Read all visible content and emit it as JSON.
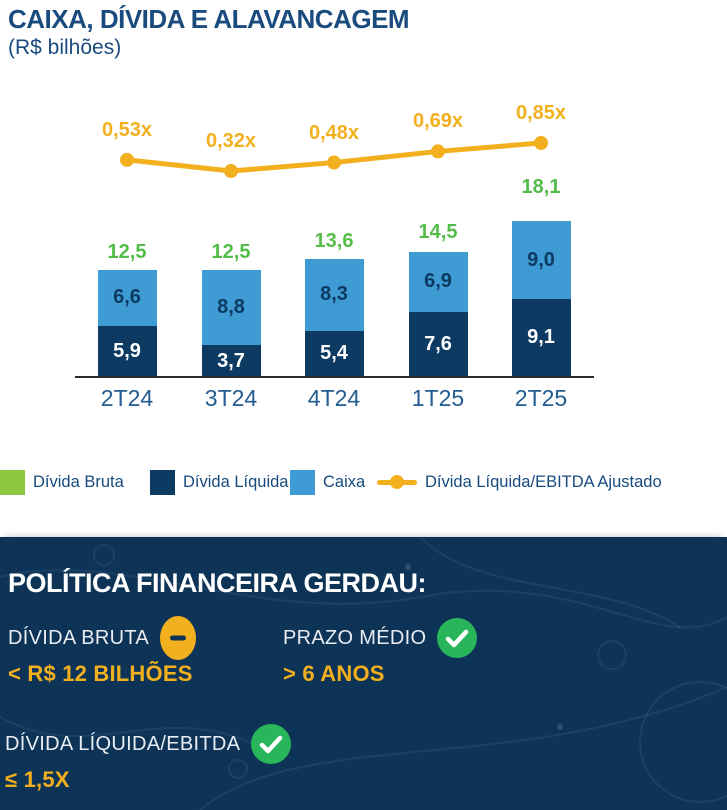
{
  "header": {
    "title": "CAIXA, DÍVIDA E ALAVANCAGEM",
    "subtitle": "(R$ bilhões)"
  },
  "chart_data": {
    "type": "bar",
    "stacked": true,
    "title": "CAIXA, DÍVIDA E ALAVANCAGEM",
    "unit": "R$ bilhões",
    "categories": [
      "2T24",
      "3T24",
      "4T24",
      "1T25",
      "2T25"
    ],
    "series": [
      {
        "name": "Dívida Líquida",
        "color": "#0D3A63",
        "values": [
          5.9,
          3.7,
          5.4,
          7.6,
          9.1
        ],
        "labels": [
          "5,9",
          "3,7",
          "5,4",
          "7,6",
          "9,1"
        ]
      },
      {
        "name": "Caixa",
        "color": "#3E9BD3",
        "values": [
          6.6,
          8.8,
          8.3,
          6.9,
          9.0
        ],
        "labels": [
          "6,6",
          "8,8",
          "8,3",
          "6,9",
          "9,0"
        ]
      }
    ],
    "totals": {
      "name": "Dívida Bruta",
      "color": "#54BD49",
      "values": [
        12.5,
        12.5,
        13.6,
        14.5,
        18.1
      ],
      "labels": [
        "12,5",
        "12,5",
        "13,6",
        "14,5",
        "18,1"
      ]
    },
    "line": {
      "name": "Dívida Líquida/EBITDA Ajustado",
      "color": "#F2B01E",
      "values": [
        0.53,
        0.32,
        0.48,
        0.69,
        0.85
      ],
      "labels": [
        "0,53x",
        "0,32x",
        "0,48x",
        "0,69x",
        "0,85x"
      ]
    },
    "ylim": [
      0,
      20
    ],
    "grid": false,
    "legend_position": "bottom"
  },
  "legend": {
    "items": [
      {
        "label": "Dívida Bruta",
        "color": "#8DC63F",
        "type": "square"
      },
      {
        "label": "Dívida Líquida",
        "color": "#0D3A63",
        "type": "square"
      },
      {
        "label": "Caixa",
        "color": "#3E9BD3",
        "type": "square"
      },
      {
        "label": "Dívida Líquida/EBITDA Ajustado",
        "color": "#F2B01E",
        "type": "line-marker"
      }
    ]
  },
  "policy": {
    "title": "POLÍTICA FINANCEIRA GERDAU:",
    "items": [
      {
        "label": "DÍVIDA BRUTA",
        "badge": "minus",
        "value": "< R$ 12 BILHÕES"
      },
      {
        "label": "PRAZO MÉDIO",
        "badge": "check",
        "value": "> 6 ANOS"
      },
      {
        "label": "DÍVIDA LÍQUIDA/EBITDA",
        "badge": "check",
        "value": "≤ 1,5X"
      }
    ]
  },
  "colors": {
    "title_navy": "#1A4B7F",
    "bar_navy": "#0D3A63",
    "bar_light_blue": "#3E9BD3",
    "total_green": "#54BD49",
    "legend_green": "#8DC63F",
    "brand_yellow": "#F2B01E",
    "panel_navy": "#0D3456",
    "badge_check_green": "#29B65B"
  }
}
